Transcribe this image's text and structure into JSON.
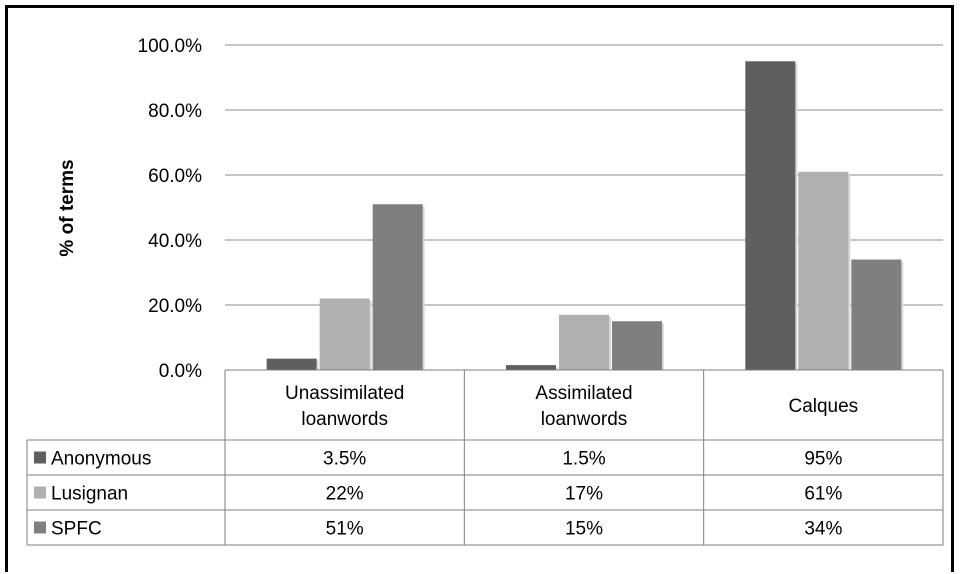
{
  "chart_data": {
    "type": "bar",
    "ylabel": "% of terms",
    "ylim": [
      0,
      100
    ],
    "y_ticks": [
      "0.0%",
      "20.0%",
      "40.0%",
      "60.0%",
      "80.0%",
      "100.0%"
    ],
    "grid": true,
    "categories": [
      [
        "Unassimilated",
        "loanwords"
      ],
      [
        "Assimilated",
        "loanwords"
      ],
      [
        "Calques"
      ]
    ],
    "series": [
      {
        "name": "Anonymous",
        "color": "#5f5f5f",
        "values": [
          3.5,
          1.5,
          95
        ],
        "labels": [
          "3.5%",
          "1.5%",
          "95%"
        ]
      },
      {
        "name": "Lusignan",
        "color": "#b0b0b0",
        "values": [
          22,
          17,
          61
        ],
        "labels": [
          "22%",
          "17%",
          "61%"
        ]
      },
      {
        "name": "SPFC",
        "color": "#7f7f7f",
        "values": [
          51,
          15,
          34
        ],
        "labels": [
          "51%",
          "15%",
          "34%"
        ]
      }
    ],
    "legend": "data-table"
  }
}
